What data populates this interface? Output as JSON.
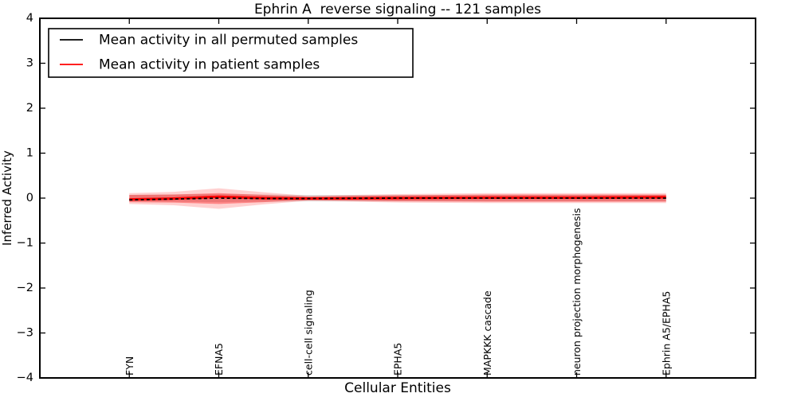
{
  "chart_data": {
    "type": "line",
    "title": "Ephrin A  reverse signaling -- 121 samples",
    "xlabel": "Cellular Entities",
    "ylabel": "Inferred Activity",
    "categories": [
      "FYN",
      "EFNA5",
      "cell-cell signaling",
      "EPHA5",
      "MAPKKK cascade",
      "neuron projection morphogenesis",
      "Ephrin A5/EPHA5"
    ],
    "ylim": [
      -4,
      4
    ],
    "xlim_units": 8,
    "ytick_values": [
      4,
      3,
      2,
      1,
      0,
      -1,
      -2,
      -3,
      -4
    ],
    "ytick_labels": [
      "4",
      "3",
      "2",
      "1",
      "0",
      "−1",
      "−2",
      "−3",
      "−4"
    ],
    "grid": false,
    "legend_position": "upper left",
    "bands": [
      {
        "name": "permuted-std-band",
        "color": "#8a8a8a",
        "opacity": 0.28,
        "x": [
          0,
          0.5,
          1,
          1.5,
          2,
          3,
          4,
          5,
          6
        ],
        "upper": [
          0.07,
          0.08,
          0.09,
          0.08,
          0.07,
          0.07,
          0.07,
          0.07,
          0.07
        ],
        "lower": [
          -0.07,
          -0.08,
          -0.09,
          -0.08,
          -0.07,
          -0.07,
          -0.07,
          -0.07,
          -0.07
        ]
      },
      {
        "name": "patient-std-outer-band",
        "color": "#ff0000",
        "opacity": 0.18,
        "x": [
          0,
          0.5,
          1,
          1.5,
          2,
          3,
          4,
          5,
          6
        ],
        "upper": [
          0.11,
          0.14,
          0.22,
          0.13,
          0.05,
          0.09,
          0.11,
          0.11,
          0.11
        ],
        "lower": [
          -0.13,
          -0.16,
          -0.24,
          -0.14,
          -0.06,
          -0.1,
          -0.11,
          -0.11,
          -0.11
        ]
      },
      {
        "name": "patient-std-inner-band",
        "color": "#ff0000",
        "opacity": 0.35,
        "x": [
          0,
          0.5,
          1,
          1.5,
          2,
          3,
          4,
          5,
          6
        ],
        "upper": [
          0.07,
          0.08,
          0.11,
          0.07,
          0.03,
          0.06,
          0.08,
          0.08,
          0.08
        ],
        "lower": [
          -0.09,
          -0.1,
          -0.13,
          -0.09,
          -0.04,
          -0.07,
          -0.08,
          -0.08,
          -0.08
        ]
      }
    ],
    "series": [
      {
        "name": "Mean activity in all permuted samples",
        "color": "#000000",
        "dash": "4 3.2",
        "width": 1.8,
        "x": [
          0,
          0.5,
          1,
          1.5,
          2,
          3,
          4,
          5,
          6
        ],
        "values": [
          -0.04,
          -0.02,
          0.0,
          -0.01,
          -0.01,
          0.0,
          0.0,
          0.0,
          0.0
        ]
      },
      {
        "name": "Mean activity in patient samples",
        "color": "#ff0000",
        "dash": null,
        "width": 3.2,
        "x": [
          0,
          0.5,
          1,
          1.5,
          2,
          3,
          4,
          5,
          6
        ],
        "values": [
          -0.03,
          -0.01,
          0.03,
          0.0,
          -0.01,
          0.0,
          0.01,
          0.01,
          0.02
        ]
      }
    ]
  }
}
